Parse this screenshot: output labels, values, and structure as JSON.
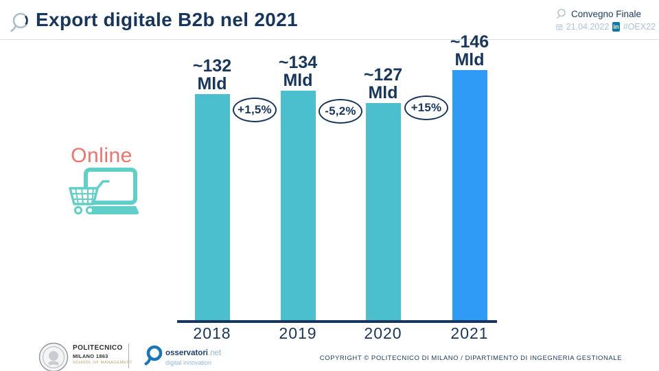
{
  "header": {
    "title": "Export digitale B2b nel 2021",
    "event_name": "Convegno Finale",
    "event_date": "21.04.2022",
    "linkedin_label": "in",
    "hashtag": "#OEX22"
  },
  "annotation": {
    "online_label": "Online"
  },
  "chart_data": {
    "type": "bar",
    "title": "Export digitale B2b nel 2021",
    "categories": [
      "2018",
      "2019",
      "2020",
      "2021"
    ],
    "values": [
      132,
      134,
      127,
      146
    ],
    "value_labels": [
      "~132",
      "~134",
      "~127",
      "~146"
    ],
    "unit": "Mld",
    "deltas": [
      "+1,5%",
      "-5,2%",
      "+15%"
    ],
    "bar_colors": [
      "#4cbfce",
      "#4cbfce",
      "#4cbfce",
      "#2f9bf7"
    ],
    "highlight_index": 3,
    "xlabel": "",
    "ylabel": "",
    "ylim": [
      0,
      150
    ],
    "grid": false,
    "legend": false
  },
  "footer": {
    "polimi_name": "POLITECNICO",
    "polimi_sub": "MILANO 1863",
    "polimi_school": "SCHOOL OF MANAGEMENT",
    "osservatori_brand": "osservatori",
    "osservatori_net": ".net",
    "osservatori_tagline": "digital innovation",
    "copyright": "COPYRIGHT © POLITECNICO DI MILANO / DIPARTIMENTO DI INGEGNERIA GESTIONALE"
  },
  "colors": {
    "navy": "#17365d",
    "teal": "#4cbfce",
    "highlight_blue": "#2f9bf7",
    "coral": "#f4716b",
    "muted_bluegray": "#aec4d6",
    "linkedin_blue": "#0e76a8",
    "gold": "#c39b62"
  }
}
